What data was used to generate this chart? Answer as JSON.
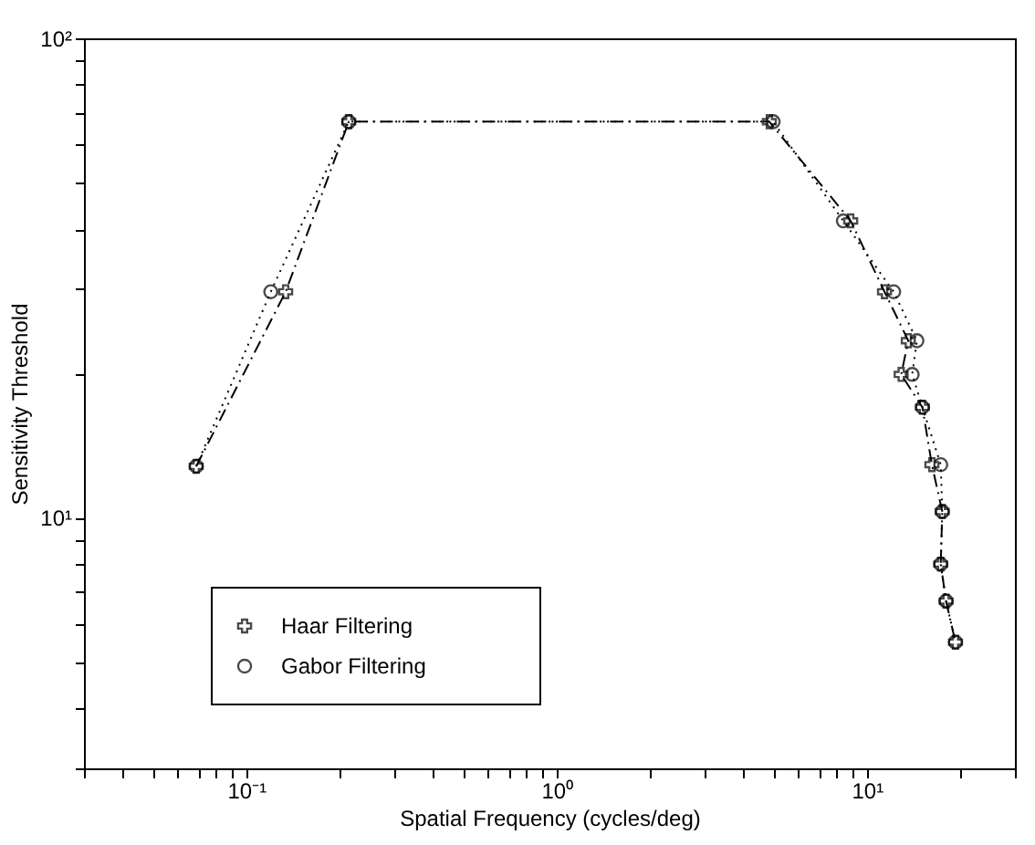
{
  "chart_data": {
    "type": "line",
    "xlabel": "Spatial Frequency (cycles/deg)",
    "ylabel": "Sensitivity Threshold",
    "log": "xy",
    "grid": false,
    "legend": "bottom left",
    "xlim": [
      0.03,
      30
    ],
    "ylim": [
      3,
      100
    ],
    "xticks": [
      {
        "value": 0.03,
        "label": null
      },
      {
        "value": 0.04,
        "label": null
      },
      {
        "value": 0.05,
        "label": null
      },
      {
        "value": 0.06,
        "label": null
      },
      {
        "value": 0.07,
        "label": null
      },
      {
        "value": 0.08,
        "label": null
      },
      {
        "value": 0.09,
        "label": null
      },
      {
        "value": 0.1,
        "label": "10⁻¹"
      },
      {
        "value": 0.2,
        "label": null
      },
      {
        "value": 0.3,
        "label": null
      },
      {
        "value": 0.4,
        "label": null
      },
      {
        "value": 0.5,
        "label": null
      },
      {
        "value": 0.6,
        "label": null
      },
      {
        "value": 0.7,
        "label": null
      },
      {
        "value": 0.8,
        "label": null
      },
      {
        "value": 0.9,
        "label": null
      },
      {
        "value": 1,
        "label": "10⁰"
      },
      {
        "value": 2,
        "label": null
      },
      {
        "value": 3,
        "label": null
      },
      {
        "value": 4,
        "label": null
      },
      {
        "value": 5,
        "label": null
      },
      {
        "value": 6,
        "label": null
      },
      {
        "value": 7,
        "label": null
      },
      {
        "value": 8,
        "label": null
      },
      {
        "value": 9,
        "label": null
      },
      {
        "value": 10,
        "label": "10¹"
      },
      {
        "value": 20,
        "label": null
      },
      {
        "value": 30,
        "label": null
      }
    ],
    "yticks": [
      {
        "value": 3,
        "label": null
      },
      {
        "value": 4,
        "label": null
      },
      {
        "value": 5,
        "label": null
      },
      {
        "value": 6,
        "label": null
      },
      {
        "value": 7,
        "label": null
      },
      {
        "value": 8,
        "label": null
      },
      {
        "value": 9,
        "label": null
      },
      {
        "value": 10,
        "label": "10¹"
      },
      {
        "value": 20,
        "label": null
      },
      {
        "value": 30,
        "label": null
      },
      {
        "value": 40,
        "label": null
      },
      {
        "value": 50,
        "label": null
      },
      {
        "value": 60,
        "label": null
      },
      {
        "value": 70,
        "label": null
      },
      {
        "value": 80,
        "label": null
      },
      {
        "value": 90,
        "label": null
      },
      {
        "value": 100,
        "label": "10²"
      }
    ],
    "series": [
      {
        "name": "Haar Filtering",
        "color": "#000000",
        "marker": "cross",
        "line_style": "dashdot",
        "x": [
          0.069,
          0.134,
          0.214,
          4.85,
          8.87,
          11.4,
          13.6,
          12.9,
          15.1,
          16.2,
          17.5,
          17.3,
          18.0,
          19.3
        ],
        "values": [
          12.8,
          29.6,
          67,
          67,
          41.6,
          29.6,
          23.4,
          19.9,
          17.0,
          12.9,
          10.3,
          8.0,
          6.7,
          5.5
        ]
      },
      {
        "name": "Gabor Filtering",
        "color": "#000000",
        "marker": "circle",
        "line_style": "dotted",
        "x": [
          0.069,
          0.12,
          0.214,
          4.99,
          8.4,
          12.2,
          14.5,
          14.0,
          15.1,
          17.3,
          17.5,
          17.3,
          18.0,
          19.3
        ],
        "values": [
          12.8,
          29.6,
          67,
          67,
          41.6,
          29.6,
          23.4,
          19.9,
          17.0,
          12.9,
          10.3,
          8.0,
          6.7,
          5.5
        ]
      }
    ]
  }
}
